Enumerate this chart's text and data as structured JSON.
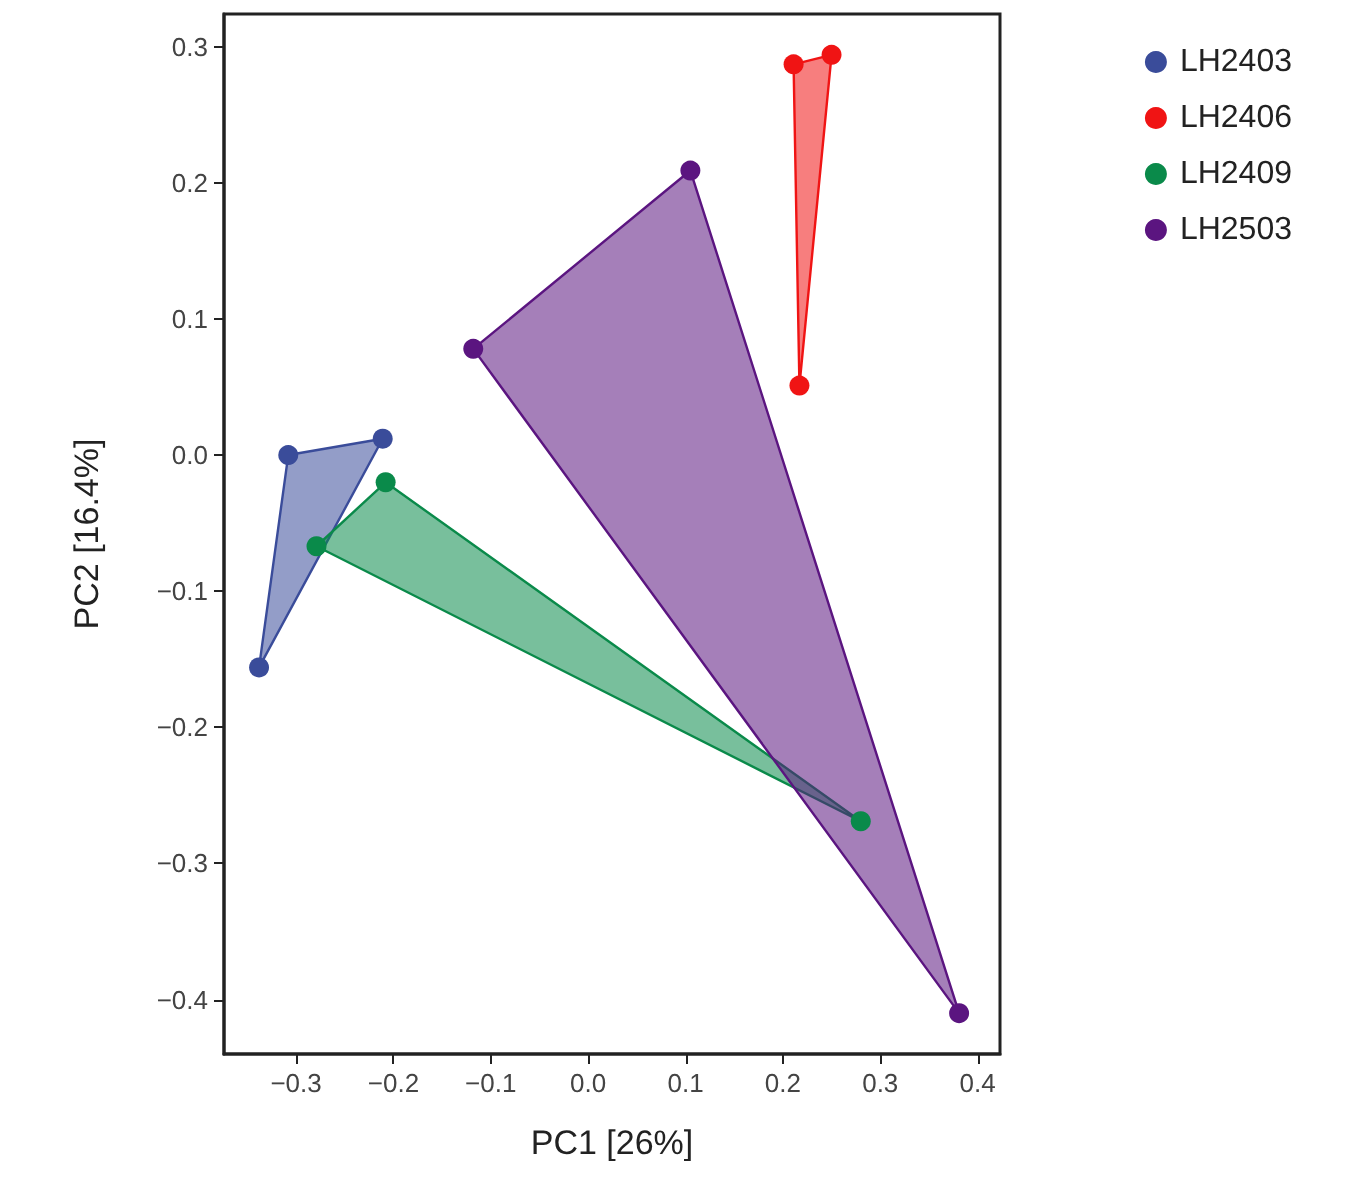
{
  "chart_data": {
    "type": "scatter",
    "xlabel": "PC1 [26%]",
    "ylabel": "PC2 [16.4%]",
    "xlim": [
      -0.374,
      0.423
    ],
    "ylim": [
      -0.44,
      0.324
    ],
    "xticks": [
      {
        "value": -0.3,
        "label": "−0.3"
      },
      {
        "value": -0.2,
        "label": "−0.2"
      },
      {
        "value": -0.1,
        "label": "−0.1"
      },
      {
        "value": 0,
        "label": "0.0"
      },
      {
        "value": 0.1,
        "label": "0.1"
      },
      {
        "value": 0.2,
        "label": "0.2"
      },
      {
        "value": 0.3,
        "label": "0.3"
      },
      {
        "value": 0.4,
        "label": "0.4"
      }
    ],
    "yticks": [
      {
        "value": -0.4,
        "label": "−0.4"
      },
      {
        "value": -0.3,
        "label": "−0.3"
      },
      {
        "value": -0.2,
        "label": "−0.2"
      },
      {
        "value": -0.1,
        "label": "−0.1"
      },
      {
        "value": 0,
        "label": "0.0"
      },
      {
        "value": 0.1,
        "label": "0.1"
      },
      {
        "value": 0.2,
        "label": "0.2"
      },
      {
        "value": 0.3,
        "label": "0.3"
      }
    ],
    "grid": false,
    "legend": "right",
    "marker": "circle",
    "series": [
      {
        "name": "LH2403",
        "color": "#3a4c9a",
        "x": [
          -0.308,
          -0.211,
          -0.338
        ],
        "values": [
          0.0,
          0.012,
          -0.156
        ]
      },
      {
        "name": "LH2406",
        "color": "#f01414",
        "x": [
          0.211,
          0.25,
          0.217
        ],
        "values": [
          0.287,
          0.294,
          0.051
        ]
      },
      {
        "name": "LH2409",
        "color": "#0a8a4a",
        "x": [
          -0.208,
          -0.279,
          0.28
        ],
        "values": [
          -0.02,
          -0.067,
          -0.269
        ]
      },
      {
        "name": "LH2503",
        "color": "#5b1580",
        "x": [
          -0.118,
          0.105,
          0.381
        ],
        "values": [
          0.078,
          0.209,
          -0.41
        ]
      }
    ]
  }
}
